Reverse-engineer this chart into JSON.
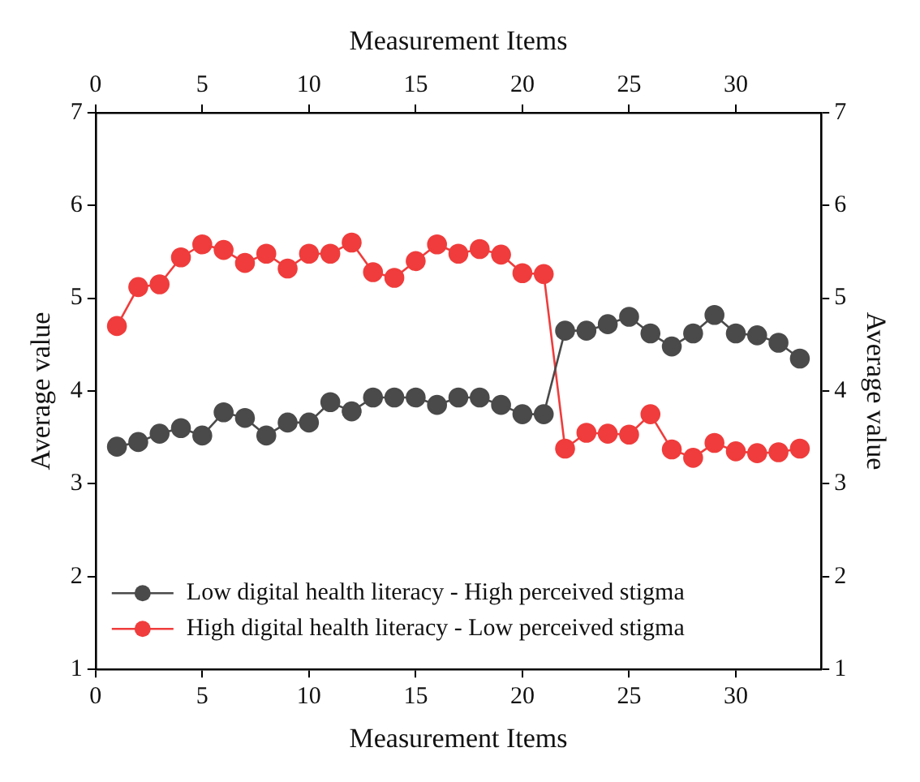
{
  "chart_data": {
    "type": "line",
    "xlabel": "Measurement Items",
    "ylabel": "Average value",
    "x2label": "Measurement Items",
    "y2label": "Average value",
    "x": [
      1,
      2,
      3,
      4,
      5,
      6,
      7,
      8,
      9,
      10,
      11,
      12,
      13,
      14,
      15,
      16,
      17,
      18,
      19,
      20,
      21,
      22,
      23,
      24,
      25,
      26,
      27,
      28,
      29,
      30,
      31,
      32,
      33
    ],
    "series": [
      {
        "name": "Low digital health literacy - High perceived stigma",
        "color": "#4a4a4a",
        "values": [
          3.4,
          3.45,
          3.54,
          3.6,
          3.52,
          3.77,
          3.71,
          3.52,
          3.66,
          3.66,
          3.88,
          3.78,
          3.93,
          3.93,
          3.93,
          3.85,
          3.93,
          3.93,
          3.85,
          3.75,
          3.75,
          4.65,
          4.65,
          4.72,
          4.8,
          4.62,
          4.48,
          4.62,
          4.82,
          4.62,
          4.6,
          4.52,
          4.35
        ]
      },
      {
        "name": "High digital health literacy - Low perceived stigma",
        "color": "#f03c3c",
        "values": [
          4.7,
          5.12,
          5.15,
          5.44,
          5.58,
          5.52,
          5.38,
          5.48,
          5.32,
          5.48,
          5.48,
          5.6,
          5.28,
          5.22,
          5.4,
          5.58,
          5.48,
          5.53,
          5.47,
          5.27,
          5.26,
          3.38,
          3.55,
          3.54,
          3.53,
          3.75,
          3.37,
          3.28,
          3.44,
          3.35,
          3.33,
          3.34,
          3.38
        ]
      }
    ],
    "xlim": [
      0,
      34
    ],
    "xticks": [
      0,
      5,
      10,
      15,
      20,
      25,
      30
    ],
    "x2lim": [
      0,
      34
    ],
    "x2ticks": [
      0,
      5,
      10,
      15,
      20,
      25,
      30
    ],
    "ylim": [
      1,
      7
    ],
    "yticks": [
      1,
      2,
      3,
      4,
      5,
      6,
      7
    ],
    "y2lim": [
      1,
      7
    ],
    "y2ticks": [
      1,
      2,
      3,
      4,
      5,
      6,
      7
    ],
    "grid": false,
    "legend": "bottom left",
    "marker": "circle",
    "line_style": "solid"
  }
}
